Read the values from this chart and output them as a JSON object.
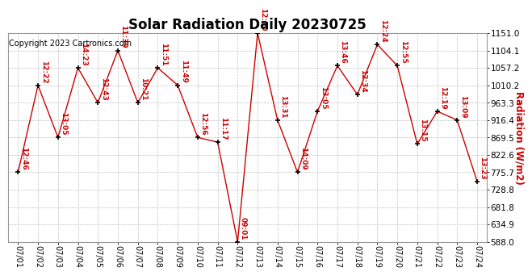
{
  "title": "Solar Radiation Daily 20230725",
  "ylabel": "Radiation (W/m2)",
  "copyright": "Copyright 2023 Cartronics.com",
  "background_color": "#ffffff",
  "line_color": "#cc0000",
  "grid_color": "#c0c0c0",
  "x_labels": [
    "07/01",
    "07/02",
    "07/03",
    "07/04",
    "07/05",
    "07/06",
    "07/07",
    "07/08",
    "07/09",
    "07/10",
    "07/11",
    "07/12",
    "07/13",
    "07/14",
    "07/15",
    "07/16",
    "07/17",
    "07/18",
    "07/19",
    "07/20",
    "07/21",
    "07/22",
    "07/23",
    "07/24"
  ],
  "y_values": [
    775.7,
    1010.2,
    869.5,
    1057.2,
    963.3,
    1104.1,
    963.3,
    1057.2,
    1010.2,
    869.5,
    857.0,
    588.0,
    1151.0,
    916.4,
    775.7,
    940.0,
    1063.0,
    985.0,
    1120.0,
    1063.0,
    852.0,
    940.0,
    916.4,
    751.0
  ],
  "annotations": [
    "12:46",
    "12:22",
    "13:05",
    "14:23",
    "12:43",
    "11:39",
    "10:21",
    "11:51",
    "11:49",
    "12:56",
    "11:17",
    "09:01",
    "12:50",
    "13:31",
    "14:09",
    "13:05",
    "13:46",
    "12:34",
    "12:24",
    "12:55",
    "13:15",
    "12:19",
    "13:09",
    "13:23"
  ],
  "ylim_min": 588.0,
  "ylim_max": 1151.0,
  "yticks": [
    588.0,
    634.9,
    681.8,
    728.8,
    775.7,
    822.6,
    869.5,
    916.4,
    963.3,
    1010.2,
    1057.2,
    1104.1,
    1151.0
  ],
  "title_fontsize": 12,
  "annotation_fontsize": 6.5,
  "ylabel_fontsize": 8.5,
  "copyright_fontsize": 7,
  "tick_fontsize": 7,
  "ytick_fontsize": 7.5
}
